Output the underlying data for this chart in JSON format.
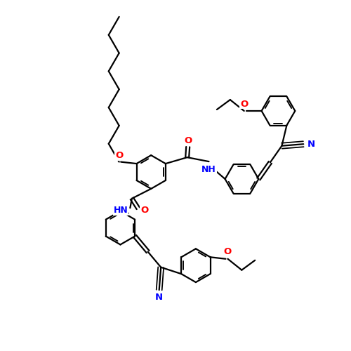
{
  "bg": "#ffffff",
  "bc": "#000000",
  "Nc": "#0000ff",
  "Oc": "#ff0000",
  "lw": 1.6,
  "lw_db": 1.4,
  "dbo": 0.05,
  "fs": 8.5,
  "r": 0.48,
  "fig_size": [
    5.0,
    5.0
  ],
  "dpi": 100,
  "xlim": [
    0,
    10
  ],
  "ylim": [
    0,
    10
  ],
  "seg": 0.6,
  "chain_angles": [
    120,
    60,
    120,
    60,
    120,
    60,
    120,
    60
  ]
}
